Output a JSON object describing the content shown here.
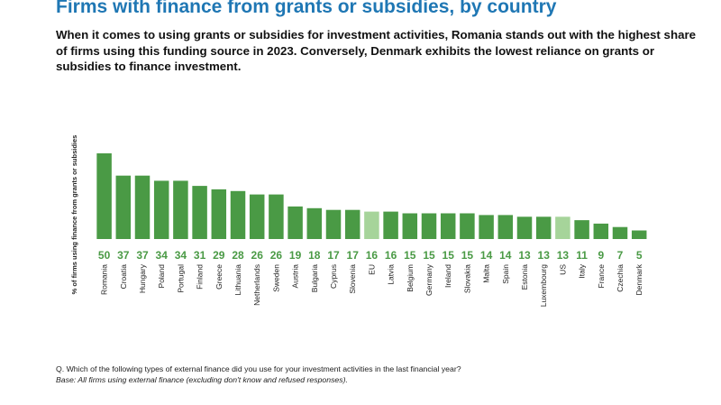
{
  "header": {
    "title": "Firms with finance from grants or subsidies, by country",
    "subtitle": "When it comes to using grants or subsidies for investment activities, Romania stands out with the highest share of firms using this funding source in 2023. Conversely, Denmark exhibits the lowest reliance on grants or subsidies to finance investment."
  },
  "footnote": {
    "question": "Q. Which of the following types of external finance did you use for your investment activities in the last financial year?",
    "base": "Base: All firms using external finance (excluding don't know and refused responses)."
  },
  "colors": {
    "bar": "#4a9a45",
    "bar_highlight": "#a6d49a",
    "value_text": "#4a9a45",
    "title": "#1f77b4"
  },
  "chart_data": {
    "type": "bar",
    "title": "Firms with finance from grants or subsidies, by country",
    "ylabel": "% of firms using finance from grants or subsidies",
    "xlabel": "",
    "ylim": [
      0,
      50
    ],
    "grid": false,
    "categories": [
      "Romania",
      "Croatia",
      "Hungary",
      "Poland",
      "Portugal",
      "Finland",
      "Greece",
      "Lithuania",
      "Netherlands",
      "Sweden",
      "Austria",
      "Bulgaria",
      "Cyprus",
      "Slovenia",
      "EU",
      "Latvia",
      "Belgium",
      "Germany",
      "Ireland",
      "Slovakia",
      "Malta",
      "Spain",
      "Estonia",
      "Luxembourg",
      "US",
      "Italy",
      "France",
      "Czechia",
      "Denmark"
    ],
    "values": [
      50,
      37,
      37,
      34,
      34,
      31,
      29,
      28,
      26,
      26,
      19,
      18,
      17,
      17,
      16,
      16,
      15,
      15,
      15,
      15,
      14,
      14,
      13,
      13,
      13,
      11,
      9,
      7,
      5
    ],
    "highlighted": [
      "EU",
      "US"
    ]
  }
}
